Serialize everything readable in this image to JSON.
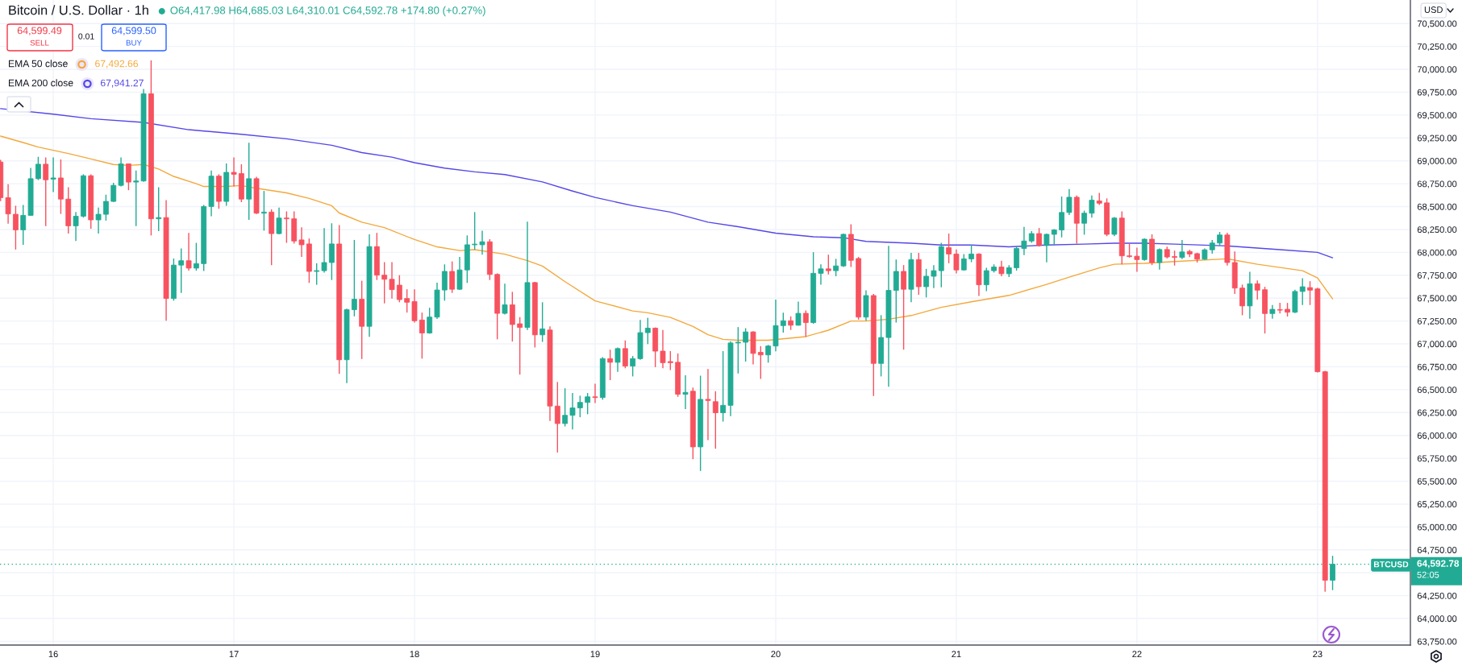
{
  "chart_data": {
    "type": "candlestick",
    "title": "Bitcoin / U.S. Dollar · 1h",
    "subtitle": "O64,417.98 H64,685.03 L64,310.01 C64,592.78 +174.80 (+0.27%)",
    "x": [
      15.7083,
      15.75,
      15.7917,
      15.8333,
      15.875,
      15.9167,
      15.9583,
      16,
      16.0417,
      16.0833,
      16.125,
      16.1667,
      16.2083,
      16.25,
      16.2917,
      16.3333,
      16.375,
      16.4167,
      16.4583,
      16.5,
      16.5417,
      16.5833,
      16.625,
      16.6667,
      16.7083,
      16.75,
      16.7917,
      16.8333,
      16.875,
      16.9167,
      16.9583,
      17,
      17.0417,
      17.0833,
      17.125,
      17.1667,
      17.2083,
      17.25,
      17.2917,
      17.3333,
      17.375,
      17.4167,
      17.4583,
      17.5,
      17.5417,
      17.5833,
      17.625,
      17.6667,
      17.7083,
      17.75,
      17.7917,
      17.8333,
      17.875,
      17.9167,
      17.9583,
      18,
      18.0417,
      18.0833,
      18.125,
      18.1667,
      18.2083,
      18.25,
      18.2917,
      18.3333,
      18.375,
      18.4167,
      18.4583,
      18.5,
      18.5417,
      18.5833,
      18.625,
      18.6667,
      18.7083,
      18.75,
      18.7917,
      18.8333,
      18.875,
      18.9167,
      18.9583,
      19,
      19.0417,
      19.0833,
      19.125,
      19.1667,
      19.2083,
      19.25,
      19.2917,
      19.3333,
      19.375,
      19.4167,
      19.4583,
      19.5,
      19.5417,
      19.5833,
      19.625,
      19.6667,
      19.7083,
      19.75,
      19.7917,
      19.8333,
      19.875,
      19.9167,
      19.9583,
      20,
      20.0417,
      20.0833,
      20.125,
      20.1667,
      20.2083,
      20.25,
      20.2917,
      20.3333,
      20.375,
      20.4167,
      20.4583,
      20.5,
      20.5417,
      20.5833,
      20.625,
      20.6667,
      20.7083,
      20.75,
      20.7917,
      20.8333,
      20.875,
      20.9167,
      20.9583,
      21,
      21.0417,
      21.0833,
      21.125,
      21.1667,
      21.2083,
      21.25,
      21.2917,
      21.3333,
      21.375,
      21.4167,
      21.4583,
      21.5,
      21.5417,
      21.5833,
      21.625,
      21.6667,
      21.7083,
      21.75,
      21.7917,
      21.8333,
      21.875,
      21.9167,
      21.9583,
      22,
      22.0417,
      22.0833,
      22.125,
      22.1667,
      22.2083,
      22.25,
      22.2917,
      22.3333,
      22.375,
      22.4167,
      22.4583,
      22.5,
      22.5417,
      22.5833,
      22.625,
      22.6667,
      22.7083,
      22.75,
      22.7917,
      22.8333,
      22.875,
      22.9167,
      22.9583,
      23,
      23.0417,
      23.0833
    ],
    "ohlc": [
      [
        68987,
        69010,
        68560,
        68598
      ],
      [
        68598,
        68744,
        68314,
        68420
      ],
      [
        68416,
        68509,
        68031,
        68246
      ],
      [
        68246,
        68517,
        68083,
        68404
      ],
      [
        68404,
        68922,
        68400,
        68805
      ],
      [
        68805,
        69044,
        68790,
        68963
      ],
      [
        68963,
        69036,
        68286,
        68793
      ],
      [
        68800,
        69036,
        68659,
        68813
      ],
      [
        68813,
        69015,
        68420,
        68582
      ],
      [
        68582,
        68711,
        68205,
        68290
      ],
      [
        68290,
        68440,
        68124,
        68395
      ],
      [
        68395,
        68853,
        68380,
        68837
      ],
      [
        68837,
        68853,
        68258,
        68355
      ],
      [
        68355,
        68489,
        68205,
        68416
      ],
      [
        68416,
        68630,
        68347,
        68557
      ],
      [
        68557,
        68760,
        68550,
        68732
      ],
      [
        68732,
        69036,
        68720,
        68967
      ],
      [
        68967,
        68971,
        68679,
        68768
      ],
      [
        68768,
        68894,
        68286,
        68780
      ],
      [
        68780,
        69785,
        68772,
        69733
      ],
      [
        69733,
        70097,
        68185,
        68367
      ],
      [
        68367,
        68711,
        68233,
        68380
      ],
      [
        68380,
        68570,
        67253,
        67496
      ],
      [
        67496,
        67933,
        67472,
        67861
      ],
      [
        67861,
        68043,
        67557,
        67909
      ],
      [
        67909,
        68213,
        67800,
        67828
      ],
      [
        67828,
        68104,
        67800,
        67877
      ],
      [
        67877,
        68517,
        67796,
        68501
      ],
      [
        68501,
        68894,
        68395,
        68833
      ],
      [
        68833,
        68853,
        68476,
        68557
      ],
      [
        68557,
        68971,
        68509,
        68874
      ],
      [
        68874,
        69036,
        68720,
        68853
      ],
      [
        68861,
        68963,
        68549,
        68582
      ],
      [
        68582,
        69198,
        68355,
        68805
      ],
      [
        68805,
        68825,
        68420,
        68428
      ],
      [
        68428,
        68671,
        68237,
        68440
      ],
      [
        68440,
        68470,
        67860,
        68205
      ],
      [
        68205,
        68489,
        68197,
        68375
      ],
      [
        68375,
        68448,
        68104,
        68367
      ],
      [
        68367,
        68448,
        68096,
        68124
      ],
      [
        68136,
        68274,
        67950,
        68083
      ],
      [
        68092,
        68152,
        67666,
        67792
      ],
      [
        67792,
        67881,
        67646,
        67800
      ],
      [
        67800,
        68266,
        67780,
        67889
      ],
      [
        67889,
        68318,
        67698,
        68092
      ],
      [
        68092,
        68298,
        66673,
        66827
      ],
      [
        66827,
        67386,
        66572,
        67374
      ],
      [
        67374,
        68136,
        67301,
        67488
      ],
      [
        67488,
        67690,
        66835,
        67192
      ],
      [
        67192,
        68197,
        67078,
        68063
      ],
      [
        68063,
        68213,
        67698,
        67751
      ],
      [
        67751,
        67893,
        67443,
        67706
      ],
      [
        67706,
        67893,
        67496,
        67593
      ],
      [
        67642,
        67751,
        67455,
        67484
      ],
      [
        67496,
        67597,
        67342,
        67455
      ],
      [
        67463,
        67597,
        67233,
        67253
      ],
      [
        67261,
        67342,
        66839,
        67119
      ],
      [
        67119,
        67395,
        67111,
        67293
      ],
      [
        67293,
        67670,
        67273,
        67589
      ],
      [
        67589,
        67869,
        67472,
        67792
      ],
      [
        67792,
        67901,
        67557,
        67597
      ],
      [
        67597,
        67950,
        67589,
        67808
      ],
      [
        67808,
        68185,
        67666,
        68083
      ],
      [
        68083,
        68440,
        68031,
        68090
      ],
      [
        68083,
        68237,
        67974,
        68116
      ],
      [
        68116,
        68144,
        67698,
        67759
      ],
      [
        67759,
        67771,
        67050,
        67334
      ],
      [
        67334,
        67658,
        67322,
        67427
      ],
      [
        67427,
        67569,
        67026,
        67212
      ],
      [
        67220,
        67293,
        66665,
        67180
      ],
      [
        67180,
        68335,
        67152,
        67670
      ],
      [
        67670,
        67678,
        66961,
        67099
      ],
      [
        67099,
        67455,
        67022,
        67164
      ],
      [
        67152,
        67192,
        66159,
        66321
      ],
      [
        66321,
        66584,
        65814,
        66130
      ],
      [
        66130,
        66515,
        66098,
        66220
      ],
      [
        66220,
        66463,
        66066,
        66301
      ],
      [
        66301,
        66434,
        66199,
        66361
      ],
      [
        66361,
        66463,
        66232,
        66422
      ],
      [
        66422,
        66564,
        66353,
        66414
      ],
      [
        66414,
        66856,
        66390,
        66839
      ],
      [
        66839,
        66937,
        66604,
        66799
      ],
      [
        66799,
        66961,
        66694,
        66949
      ],
      [
        66949,
        67038,
        66734,
        66758
      ],
      [
        66758,
        66868,
        66645,
        66839
      ],
      [
        66839,
        67261,
        66827,
        67123
      ],
      [
        67123,
        67285,
        66998,
        67172
      ],
      [
        67172,
        67180,
        66746,
        66921
      ],
      [
        66921,
        67152,
        66734,
        66795
      ],
      [
        66807,
        66921,
        66714,
        66795
      ],
      [
        66799,
        66896,
        66422,
        66450
      ],
      [
        66450,
        66657,
        66288,
        66470
      ],
      [
        66483,
        66523,
        65741,
        65875
      ],
      [
        65875,
        66653,
        65612,
        66394
      ],
      [
        66394,
        66726,
        65948,
        66382
      ],
      [
        66369,
        66483,
        65855,
        66248
      ],
      [
        66248,
        66921,
        66151,
        66329
      ],
      [
        66329,
        67030,
        66211,
        67010
      ],
      [
        67010,
        67184,
        66677,
        67018
      ],
      [
        67018,
        67172,
        66807,
        67131
      ],
      [
        67131,
        67139,
        66775,
        66896
      ],
      [
        66908,
        66977,
        66617,
        66880
      ],
      [
        66880,
        66989,
        66795,
        66977
      ],
      [
        66977,
        67484,
        66920,
        67200
      ],
      [
        67200,
        67342,
        67123,
        67253
      ],
      [
        67253,
        67301,
        67152,
        67204
      ],
      [
        67204,
        67463,
        67200,
        67334
      ],
      [
        67334,
        67366,
        67078,
        67233
      ],
      [
        67233,
        68002,
        67220,
        67771
      ],
      [
        67771,
        67869,
        67646,
        67820
      ],
      [
        67820,
        67974,
        67759,
        67800
      ],
      [
        67800,
        67929,
        67739,
        67852
      ],
      [
        67852,
        68205,
        67840,
        68197
      ],
      [
        68197,
        68306,
        67840,
        67913
      ],
      [
        67933,
        67950,
        67265,
        67293
      ],
      [
        67293,
        67585,
        67253,
        67528
      ],
      [
        67528,
        67545,
        66430,
        66787
      ],
      [
        66787,
        67314,
        66645,
        67070
      ],
      [
        67070,
        68071,
        66531,
        67585
      ],
      [
        67585,
        67921,
        67233,
        67792
      ],
      [
        67792,
        67861,
        66937,
        67597
      ],
      [
        67597,
        67994,
        67455,
        67921
      ],
      [
        67921,
        67994,
        67536,
        67625
      ],
      [
        67625,
        67820,
        67508,
        67739
      ],
      [
        67739,
        67861,
        67609,
        67800
      ],
      [
        67800,
        68104,
        67618,
        68063
      ],
      [
        68051,
        68205,
        67881,
        67982
      ],
      [
        67982,
        68031,
        67771,
        67808
      ],
      [
        67808,
        67982,
        67800,
        67929
      ],
      [
        67929,
        68083,
        67893,
        67982
      ],
      [
        67982,
        67990,
        67524,
        67646
      ],
      [
        67646,
        67832,
        67577,
        67800
      ],
      [
        67800,
        67869,
        67780,
        67840
      ],
      [
        67840,
        67909,
        67739,
        67767
      ],
      [
        67767,
        67861,
        67731,
        67832
      ],
      [
        67832,
        68063,
        67800,
        68043
      ],
      [
        68043,
        68278,
        67970,
        68124
      ],
      [
        68124,
        68233,
        68104,
        68205
      ],
      [
        68205,
        68266,
        68063,
        68075
      ],
      [
        68075,
        68205,
        67892,
        68197
      ],
      [
        68197,
        68254,
        68083,
        68245
      ],
      [
        68245,
        68610,
        68164,
        68436
      ],
      [
        68436,
        68691,
        68408,
        68602
      ],
      [
        68602,
        68622,
        68096,
        68318
      ],
      [
        68318,
        68456,
        68193,
        68428
      ],
      [
        68428,
        68622,
        68379,
        68570
      ],
      [
        68562,
        68651,
        68517,
        68537
      ],
      [
        68541,
        68590,
        68177,
        68197
      ],
      [
        68197,
        68387,
        68177,
        68375
      ],
      [
        68375,
        68448,
        67869,
        67962
      ],
      [
        67962,
        68096,
        67942,
        67954
      ],
      [
        67958,
        68051,
        67787,
        67921
      ],
      [
        67921,
        68152,
        67909,
        68144
      ],
      [
        68144,
        68197,
        67861,
        67889
      ],
      [
        67889,
        68043,
        67812,
        68031
      ],
      [
        68031,
        68063,
        67934,
        67950
      ],
      [
        67954,
        68019,
        67856,
        67945
      ],
      [
        67945,
        68135,
        67926,
        68005
      ],
      [
        68010,
        68028,
        67949,
        67982
      ],
      [
        67986,
        67996,
        67889,
        67926
      ],
      [
        67926,
        68042,
        67917,
        68028
      ],
      [
        68028,
        68135,
        67986,
        68102
      ],
      [
        68102,
        68223,
        68074,
        68190
      ],
      [
        68190,
        68214,
        67856,
        67889
      ],
      [
        67889,
        68009,
        67545,
        67610
      ],
      [
        67610,
        67648,
        67313,
        67415
      ],
      [
        67415,
        67787,
        67276,
        67657
      ],
      [
        67657,
        67694,
        67485,
        67587
      ],
      [
        67592,
        67624,
        67114,
        67332
      ],
      [
        67332,
        67425,
        67276,
        67378
      ],
      [
        67374,
        67448,
        67332,
        67369
      ],
      [
        67378,
        67448,
        67299,
        67346
      ],
      [
        67346,
        67592,
        67337,
        67573
      ],
      [
        67573,
        67717,
        67425,
        67624
      ],
      [
        67615,
        67685,
        67425,
        67587
      ],
      [
        67601,
        67615,
        66687,
        66696
      ],
      [
        66696,
        66705,
        64293,
        64418
      ],
      [
        64417.98,
        64685.03,
        64310.01,
        64592.78
      ]
    ],
    "colors": [
      "#f7525f",
      "#f7525f",
      "#f7525f",
      "#22ab94",
      "#22ab94",
      "#22ab94",
      "#f7525f",
      "#22ab94",
      "#f7525f",
      "#f7525f",
      "#22ab94",
      "#22ab94",
      "#f7525f",
      "#22ab94",
      "#22ab94",
      "#22ab94",
      "#22ab94",
      "#f7525f",
      "#22ab94",
      "#22ab94",
      "#f7525f",
      "#22ab94",
      "#f7525f",
      "#22ab94",
      "#22ab94",
      "#f7525f",
      "#22ab94",
      "#22ab94",
      "#22ab94",
      "#f7525f",
      "#22ab94",
      "#f7525f",
      "#f7525f",
      "#22ab94",
      "#f7525f",
      "#22ab94",
      "#f7525f",
      "#22ab94",
      "#f7525f",
      "#f7525f",
      "#f7525f",
      "#f7525f",
      "#22ab94",
      "#22ab94",
      "#22ab94",
      "#f7525f",
      "#22ab94",
      "#22ab94",
      "#f7525f",
      "#22ab94",
      "#f7525f",
      "#f7525f",
      "#f7525f",
      "#f7525f",
      "#f7525f",
      "#f7525f",
      "#f7525f",
      "#22ab94",
      "#22ab94",
      "#22ab94",
      "#f7525f",
      "#22ab94",
      "#22ab94",
      "#22ab94",
      "#22ab94",
      "#f7525f",
      "#f7525f",
      "#22ab94",
      "#f7525f",
      "#f7525f",
      "#22ab94",
      "#f7525f",
      "#22ab94",
      "#f7525f",
      "#f7525f",
      "#22ab94",
      "#22ab94",
      "#22ab94",
      "#22ab94",
      "#f7525f",
      "#22ab94",
      "#f7525f",
      "#22ab94",
      "#f7525f",
      "#22ab94",
      "#22ab94",
      "#22ab94",
      "#f7525f",
      "#f7525f",
      "#f7525f",
      "#f7525f",
      "#22ab94",
      "#f7525f",
      "#22ab94",
      "#f7525f",
      "#f7525f",
      "#22ab94",
      "#22ab94",
      "#22ab94",
      "#22ab94",
      "#f7525f",
      "#f7525f",
      "#22ab94",
      "#22ab94",
      "#22ab94",
      "#f7525f",
      "#22ab94",
      "#f7525f",
      "#22ab94",
      "#22ab94",
      "#f7525f",
      "#22ab94",
      "#22ab94",
      "#f7525f",
      "#f7525f",
      "#22ab94",
      "#f7525f",
      "#22ab94",
      "#22ab94",
      "#22ab94",
      "#f7525f",
      "#22ab94",
      "#f7525f",
      "#22ab94",
      "#22ab94",
      "#22ab94",
      "#f7525f",
      "#f7525f",
      "#22ab94",
      "#22ab94",
      "#f7525f",
      "#22ab94",
      "#22ab94",
      "#f7525f",
      "#22ab94",
      "#22ab94",
      "#22ab94",
      "#22ab94",
      "#f7525f",
      "#22ab94",
      "#22ab94",
      "#22ab94",
      "#22ab94",
      "#f7525f",
      "#22ab94",
      "#22ab94",
      "#f7525f",
      "#f7525f",
      "#22ab94",
      "#f7525f",
      "#f7525f",
      "#f7525f",
      "#22ab94",
      "#f7525f",
      "#22ab94",
      "#f7525f",
      "#f7525f",
      "#22ab94",
      "#f7525f",
      "#f7525f",
      "#22ab94",
      "#22ab94",
      "#22ab94",
      "#f7525f",
      "#f7525f",
      "#f7525f",
      "#22ab94",
      "#f7525f",
      "#f7525f",
      "#22ab94",
      "#f7525f",
      "#f7525f",
      "#22ab94",
      "#22ab94",
      "#f7525f",
      "#f7525f",
      "#f7525f",
      "#22ab94"
    ],
    "series": [
      {
        "name": "EMA 50 close",
        "type": "line",
        "color": "#f3a83b",
        "x": [
          15.7083,
          15.8333,
          15.9167,
          16.0833,
          16.2083,
          16.3333,
          16.4167,
          16.5,
          16.5833,
          16.6667,
          16.7917,
          16.8333,
          16.9583,
          17.0417,
          17.125,
          17.2917,
          17.4167,
          17.5417,
          17.5833,
          17.7083,
          17.8333,
          18.0,
          18.125,
          18.25,
          18.3333,
          18.5,
          18.625,
          18.7083,
          18.8333,
          19.0,
          19.2083,
          19.2917,
          19.4167,
          19.5417,
          19.625,
          19.7083,
          19.7917,
          19.9583,
          20.1667,
          20.2917,
          20.4167,
          20.5,
          20.625,
          20.75,
          20.9167,
          21.0833,
          21.2917,
          21.5,
          21.625,
          21.7917,
          21.875,
          22.0417,
          22.2083,
          22.5,
          22.6667,
          22.9167,
          23.0,
          23.0833
        ],
        "values": [
          69270,
          69200,
          69150,
          69080,
          69020,
          68960,
          68950,
          68960,
          68910,
          68830,
          68750,
          68720,
          68720,
          68730,
          68700,
          68650,
          68590,
          68510,
          68430,
          68330,
          68270,
          68140,
          68060,
          68020,
          68030,
          67980,
          67910,
          67850,
          67680,
          67470,
          67360,
          67340,
          67290,
          67190,
          67100,
          67050,
          67040,
          67040,
          67080,
          67150,
          67250,
          67250,
          67270,
          67310,
          67400,
          67460,
          67530,
          67650,
          67730,
          67830,
          67870,
          67880,
          67900,
          67930,
          67870,
          67800,
          67720,
          67492.66
        ]
      },
      {
        "name": "EMA 200 close",
        "type": "line",
        "color": "#5447e8",
        "x": [
          15.7083,
          16.0,
          16.2083,
          16.5,
          16.75,
          17.0417,
          17.2917,
          17.5417,
          17.7083,
          17.875,
          18.0,
          18.1667,
          18.3333,
          18.5,
          18.7083,
          18.875,
          19.0,
          19.2083,
          19.4167,
          19.625,
          19.7917,
          20.0,
          20.2083,
          20.375,
          20.5,
          20.75,
          20.9167,
          21.0833,
          21.2917,
          21.5,
          21.7083,
          21.875,
          22.0417,
          22.2083,
          22.5,
          22.7917,
          23.0,
          23.0833
        ],
        "values": [
          69570,
          69510,
          69460,
          69420,
          69340,
          69290,
          69240,
          69170,
          69090,
          69040,
          68980,
          68920,
          68880,
          68850,
          68770,
          68670,
          68600,
          68510,
          68440,
          68330,
          68280,
          68210,
          68170,
          68160,
          68120,
          68100,
          68080,
          68080,
          68060,
          68080,
          68090,
          68100,
          68100,
          68090,
          68070,
          68030,
          68000,
          67941.27
        ]
      }
    ],
    "xlim": [
      15.705,
      23.514
    ],
    "xticks": [
      16,
      17,
      18,
      19,
      20,
      21,
      22,
      23
    ],
    "ylim": [
      63710,
      70757
    ],
    "yticks": [
      {
        "value": 63750,
        "label": "63,750.00"
      },
      {
        "value": 64000,
        "label": "64,000.00"
      },
      {
        "value": 64250,
        "label": "64,250.00"
      },
      {
        "value": 64500,
        "label": null
      },
      {
        "value": 64750,
        "label": "64,750.00"
      },
      {
        "value": 65000,
        "label": "65,000.00"
      },
      {
        "value": 65250,
        "label": "65,250.00"
      },
      {
        "value": 65500,
        "label": "65,500.00"
      },
      {
        "value": 65750,
        "label": "65,750.00"
      },
      {
        "value": 66000,
        "label": "66,000.00"
      },
      {
        "value": 66250,
        "label": "66,250.00"
      },
      {
        "value": 66500,
        "label": "66,500.00"
      },
      {
        "value": 66750,
        "label": "66,750.00"
      },
      {
        "value": 67000,
        "label": "67,000.00"
      },
      {
        "value": 67250,
        "label": "67,250.00"
      },
      {
        "value": 67500,
        "label": "67,500.00"
      },
      {
        "value": 67750,
        "label": "67,750.00"
      },
      {
        "value": 68000,
        "label": "68,000.00"
      },
      {
        "value": 68250,
        "label": "68,250.00"
      },
      {
        "value": 68500,
        "label": "68,500.00"
      },
      {
        "value": 68750,
        "label": "68,750.00"
      },
      {
        "value": 69000,
        "label": "69,000.00"
      },
      {
        "value": 69250,
        "label": "69,250.00"
      },
      {
        "value": 69500,
        "label": "69,500.00"
      },
      {
        "value": 69750,
        "label": "69,750.00"
      },
      {
        "value": 70000,
        "label": "70,000.00"
      },
      {
        "value": 70250,
        "label": "70,250.00"
      },
      {
        "value": 70500,
        "label": "70,500.00"
      }
    ],
    "ref_lines": [
      {
        "axis": "y",
        "value": 64592.78,
        "label": "64,592.78",
        "color": "#22ab94",
        "line_style": "dotted"
      }
    ],
    "annotations": [
      "64,599.49",
      "SELL",
      "0.01",
      "64,599.50",
      "BUY",
      "67,492.66",
      "67,941.27",
      "BTCUSD",
      "52:05",
      "USD"
    ],
    "grid": true,
    "legend": "top left"
  }
}
